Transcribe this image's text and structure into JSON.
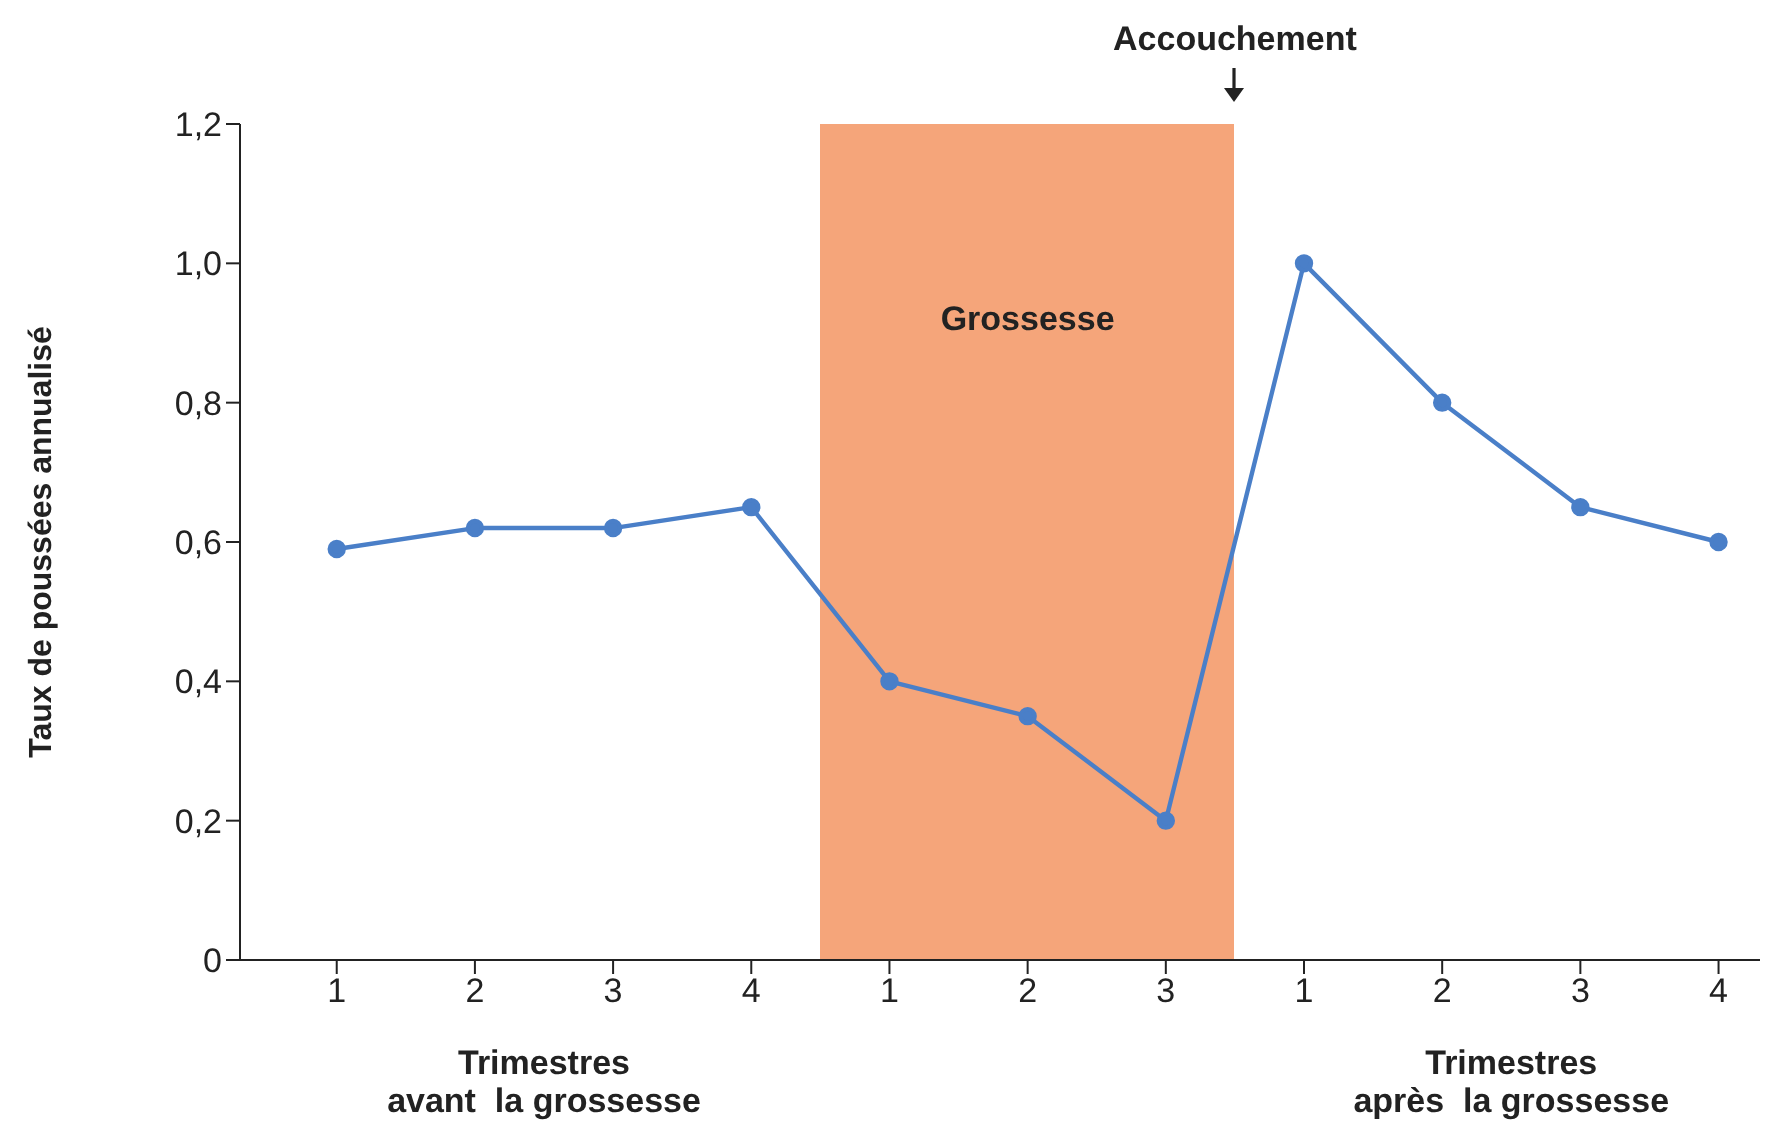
{
  "chart_data": {
    "type": "line",
    "ylabel": "Taux de poussées annualisé",
    "categories": [
      "1",
      "2",
      "3",
      "4",
      "1",
      "2",
      "3",
      "1",
      "2",
      "3",
      "4"
    ],
    "series": [
      {
        "color": "#4a7fc8",
        "values": [
          0.59,
          0.62,
          0.62,
          0.65,
          0.4,
          0.35,
          0.2,
          1.0,
          0.8,
          0.65,
          0.6
        ]
      }
    ],
    "ylim": [
      0,
      1.2
    ],
    "yticks": [
      0,
      {
        "value": 0.2,
        "label": "0,2"
      },
      {
        "value": 0.4,
        "label": "0,4"
      },
      {
        "value": 0.6,
        "label": "0,6"
      },
      {
        "value": 0.8,
        "label": "0,8"
      },
      {
        "value": 1.0,
        "label": "1,0"
      },
      {
        "value": 1.2,
        "label": "1,2"
      }
    ],
    "annotations": [
      "Accouchement",
      "Grossesse",
      "Trimestres\navant  la grossesse",
      "Trimestres\naprès  la grossesse"
    ],
    "marker": "circle",
    "line_style": "solid"
  }
}
